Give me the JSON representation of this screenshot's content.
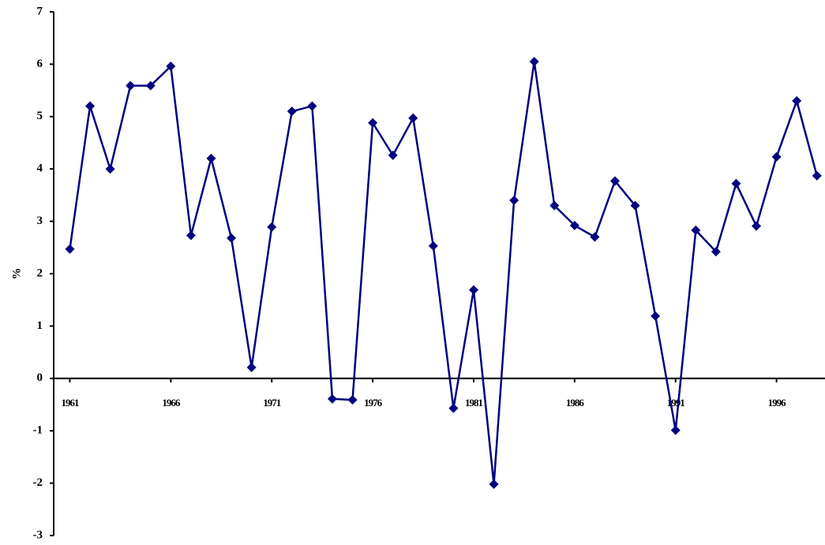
{
  "chart_data": {
    "type": "line",
    "y_label": "%",
    "x": [
      1961,
      1962,
      1963,
      1964,
      1965,
      1966,
      1967,
      1968,
      1969,
      1970,
      1971,
      1972,
      1973,
      1974,
      1975,
      1976,
      1977,
      1978,
      1979,
      1980,
      1981,
      1982,
      1983,
      1984,
      1985,
      1986,
      1987,
      1988,
      1989,
      1990,
      1991,
      1992,
      1993,
      1994,
      1995,
      1996,
      1997,
      1998
    ],
    "series": [
      {
        "color": "#000080",
        "values": [
          2.47,
          5.2,
          4.0,
          5.59,
          5.59,
          5.96,
          2.73,
          4.2,
          2.68,
          0.21,
          2.89,
          5.1,
          5.2,
          -0.39,
          -0.41,
          4.88,
          4.26,
          4.97,
          2.53,
          -0.57,
          1.69,
          -2.02,
          3.4,
          6.05,
          3.3,
          2.92,
          2.7,
          3.77,
          3.3,
          1.19,
          -0.99,
          2.83,
          2.42,
          3.72,
          2.91,
          4.23,
          5.3,
          3.87
        ]
      }
    ],
    "xlim": [
      1960.2,
      1998.4
    ],
    "xticks": [
      1961,
      1966,
      1971,
      1976,
      1981,
      1986,
      1991,
      1996
    ],
    "ylim": [
      -3,
      7
    ],
    "yticks": [
      -3,
      -2,
      -1,
      0,
      1,
      2,
      3,
      4,
      5,
      6,
      7
    ],
    "grid": false
  }
}
